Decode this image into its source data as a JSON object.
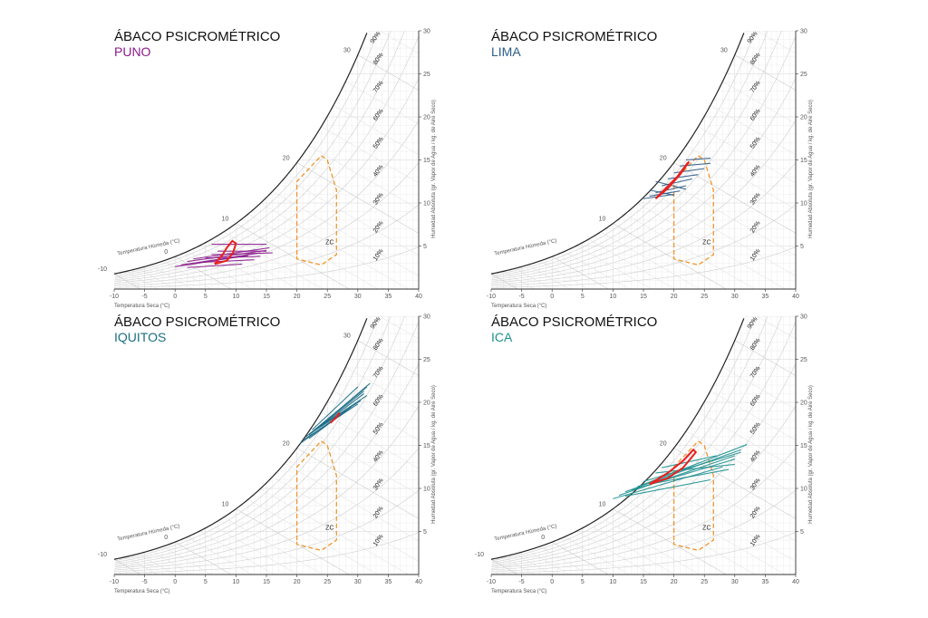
{
  "chart_data": [
    {
      "type": "psychrometric",
      "title": "ÁBACO PSICROMÉTRICO",
      "subtitle": "PUNO",
      "subtitle_color": "#8b1a8b",
      "series_color": "#8b1a8b",
      "xlabel": "Temperatura Seca (°C)",
      "ylabel": "Humedad Absoluta (gr. Vapor de Agua / kg. de Aire Seco)",
      "wetbulb_label": "Temperatura Húmeda (°C)",
      "zone_label": "ZC",
      "xlim": [
        -10,
        40
      ],
      "ylim": [
        0,
        30
      ],
      "x_ticks": [
        "-10",
        "-5",
        "0",
        "5",
        "10",
        "15",
        "20",
        "25",
        "30",
        "35",
        "40"
      ],
      "y_ticks": [
        "5",
        "10",
        "15",
        "20",
        "25",
        "30"
      ],
      "wetbulb_ticks": [
        "-10",
        "0",
        "10",
        "20",
        "30"
      ],
      "rh_labels": [
        "10%",
        "20%",
        "30%",
        "40%",
        "50%",
        "60%",
        "70%",
        "80%",
        "90%"
      ],
      "comfort_zone": [
        [
          20,
          4
        ],
        [
          20,
          12.5
        ],
        [
          24,
          15.5
        ],
        [
          25,
          15
        ],
        [
          26.5,
          11.5
        ],
        [
          26.5,
          4
        ],
        [
          24,
          2.8
        ],
        [
          20,
          3.5
        ]
      ],
      "daily_lines": [
        [
          [
            1,
            2.8
          ],
          [
            14,
            4.2
          ]
        ],
        [
          [
            2,
            3.2
          ],
          [
            15,
            4.5
          ]
        ],
        [
          [
            3,
            3.5
          ],
          [
            15.5,
            4.8
          ]
        ],
        [
          [
            0,
            2.6
          ],
          [
            12,
            3.9
          ]
        ],
        [
          [
            5,
            3.6
          ],
          [
            14,
            3.8
          ]
        ],
        [
          [
            7,
            4.4
          ],
          [
            15,
            4.4
          ]
        ],
        [
          [
            4,
            3.1
          ],
          [
            13,
            3.4
          ]
        ],
        [
          [
            2,
            2.5
          ],
          [
            11,
            2.9
          ]
        ],
        [
          [
            6,
            5.2
          ],
          [
            15,
            5.2
          ]
        ],
        [
          [
            6,
            4.0
          ],
          [
            16,
            4.2
          ]
        ]
      ],
      "monthly_path": [
        [
          6.5,
          2.9
        ],
        [
          8.5,
          3.3
        ],
        [
          9.5,
          4.2
        ],
        [
          10,
          5.3
        ],
        [
          9.4,
          5.6
        ],
        [
          8.5,
          4.8
        ],
        [
          7.8,
          4.0
        ],
        [
          6.5,
          2.9
        ]
      ]
    },
    {
      "type": "psychrometric",
      "title": "ÁBACO PSICROMÉTRICO",
      "subtitle": "LIMA",
      "subtitle_color": "#2e5d8a",
      "series_color": "#2e5d8a",
      "xlabel": "Temperatura Seca (°C)",
      "ylabel": "Humedad Absoluta (gr. Vapor de Agua / kg. de Aire Seco)",
      "wetbulb_label": "Temperatura Húmeda (°C)",
      "zone_label": "ZC",
      "xlim": [
        -10,
        40
      ],
      "ylim": [
        0,
        30
      ],
      "x_ticks": [
        "-10",
        "-5",
        "0",
        "5",
        "10",
        "15",
        "20",
        "25",
        "30",
        "35",
        "40"
      ],
      "y_ticks": [
        "5",
        "10",
        "15",
        "20",
        "25",
        "30"
      ],
      "wetbulb_ticks": [
        "10",
        "20",
        "30"
      ],
      "rh_labels": [
        "10%",
        "20%",
        "30%",
        "40%",
        "50%",
        "60%",
        "70%",
        "80%",
        "90%"
      ],
      "comfort_zone": [
        [
          20,
          4
        ],
        [
          20,
          12.5
        ],
        [
          24,
          15.5
        ],
        [
          25,
          15
        ],
        [
          26.5,
          11.5
        ],
        [
          26.5,
          4
        ],
        [
          24,
          2.8
        ],
        [
          20,
          3.5
        ]
      ],
      "daily_lines": [
        [
          [
            15,
            10.5
          ],
          [
            20,
            11
          ]
        ],
        [
          [
            16,
            10.8
          ],
          [
            21,
            11.4
          ]
        ],
        [
          [
            17,
            11.2
          ],
          [
            22,
            12
          ]
        ],
        [
          [
            18,
            12
          ],
          [
            23,
            12.8
          ]
        ],
        [
          [
            19,
            12.8
          ],
          [
            24,
            13.3
          ]
        ],
        [
          [
            20,
            13.5
          ],
          [
            25,
            14
          ]
        ],
        [
          [
            21,
            14.3
          ],
          [
            26,
            14.6
          ]
        ],
        [
          [
            22,
            15
          ],
          [
            26,
            15.2
          ]
        ],
        [
          [
            17,
            12.5
          ],
          [
            22,
            11.6
          ]
        ],
        [
          [
            16,
            11.5
          ],
          [
            20,
            10.9
          ]
        ]
      ],
      "monthly_path": [
        [
          17,
          10.5
        ],
        [
          19,
          11.7
        ],
        [
          21,
          13.3
        ],
        [
          22.5,
          14.8
        ],
        [
          22.2,
          14.6
        ],
        [
          20.5,
          13
        ],
        [
          18.5,
          11.6
        ],
        [
          17,
          10.5
        ]
      ]
    },
    {
      "type": "psychrometric",
      "title": "ÁBACO PSICROMÉTRICO",
      "subtitle": "IQUITOS",
      "subtitle_color": "#1a6d86",
      "series_color": "#1a6d86",
      "xlabel": "Temperatura Seca (°C)",
      "ylabel": "Humedad Absoluta (gr. Vapor de Agua / kg. de Aire Seco)",
      "wetbulb_label": "Temperatura Húmeda (°C)",
      "zone_label": "ZC",
      "xlim": [
        -10,
        40
      ],
      "ylim": [
        0,
        30
      ],
      "x_ticks": [
        "-10",
        "-5",
        "0",
        "5",
        "10",
        "15",
        "20",
        "25",
        "30",
        "35",
        "40"
      ],
      "y_ticks": [
        "5",
        "10",
        "15",
        "20",
        "25",
        "30"
      ],
      "wetbulb_ticks": [
        "-10",
        "0",
        "10",
        "20",
        "30"
      ],
      "rh_labels": [
        "10%",
        "20%",
        "30%",
        "40%",
        "50%",
        "60%",
        "70%",
        "80%",
        "90%"
      ],
      "comfort_zone": [
        [
          20,
          4
        ],
        [
          20,
          12.5
        ],
        [
          24,
          15.5
        ],
        [
          25,
          15
        ],
        [
          26.5,
          11.5
        ],
        [
          26.5,
          4
        ],
        [
          24,
          2.8
        ],
        [
          20,
          3.5
        ]
      ],
      "daily_lines": [
        [
          [
            22,
            16.2
          ],
          [
            32,
            22.2
          ]
        ],
        [
          [
            21.5,
            16
          ],
          [
            31.5,
            21.8
          ]
        ],
        [
          [
            22.5,
            16.5
          ],
          [
            31,
            21.3
          ]
        ],
        [
          [
            23,
            16.8
          ],
          [
            31.5,
            20.8
          ]
        ],
        [
          [
            22,
            16.3
          ],
          [
            30.5,
            20.2
          ]
        ],
        [
          [
            21,
            15.6
          ],
          [
            30,
            19.8
          ]
        ],
        [
          [
            23.5,
            17
          ],
          [
            31,
            21
          ]
        ],
        [
          [
            22,
            15.8
          ],
          [
            29,
            19.5
          ]
        ],
        [
          [
            20.5,
            15.2
          ],
          [
            28,
            19
          ]
        ],
        [
          [
            22.5,
            16.8
          ],
          [
            30,
            21.8
          ]
        ]
      ],
      "monthly_path": [
        [
          25.5,
          17.6
        ],
        [
          26.8,
          18.5
        ],
        [
          27,
          18.8
        ],
        [
          26.5,
          18.3
        ],
        [
          25.5,
          17.6
        ]
      ]
    },
    {
      "type": "psychrometric",
      "title": "ÁBACO PSICROMÉTRICO",
      "subtitle": "ICA",
      "subtitle_color": "#1f9090",
      "series_color": "#1f9090",
      "xlabel": "Temperatura Seca (°C)",
      "ylabel": "Humedad Absoluta (gr. Vapor de Agua / kg. de Aire Seco)",
      "wetbulb_label": "Temperatura Húmeda (°C)",
      "zone_label": "ZC",
      "xlim": [
        -10,
        40
      ],
      "ylim": [
        0,
        30
      ],
      "x_ticks": [
        "-10",
        "-5",
        "0",
        "5",
        "10",
        "15",
        "20",
        "25",
        "30",
        "35",
        "40"
      ],
      "y_ticks": [
        "5",
        "10",
        "15",
        "20",
        "25",
        "30"
      ],
      "wetbulb_ticks": [
        "-10",
        "0",
        "10",
        "20"
      ],
      "rh_labels": [
        "10%",
        "20%",
        "30%",
        "40%",
        "50%",
        "60%",
        "70%",
        "80%",
        "90%"
      ],
      "comfort_zone": [
        [
          20,
          4
        ],
        [
          20,
          12.5
        ],
        [
          24,
          15.5
        ],
        [
          25,
          15
        ],
        [
          26.5,
          11.5
        ],
        [
          26.5,
          4
        ],
        [
          24,
          2.8
        ],
        [
          20,
          3.5
        ]
      ],
      "daily_lines": [
        [
          [
            11,
            9.2
          ],
          [
            30,
            13.8
          ]
        ],
        [
          [
            12,
            9.6
          ],
          [
            31,
            14.5
          ]
        ],
        [
          [
            14,
            10.2
          ],
          [
            32,
            15.1
          ]
        ],
        [
          [
            10,
            8.8
          ],
          [
            28,
            12.5
          ]
        ],
        [
          [
            13,
            9.8
          ],
          [
            30,
            13.4
          ]
        ],
        [
          [
            15,
            10.8
          ],
          [
            31,
            14.2
          ]
        ],
        [
          [
            16,
            10.5
          ],
          [
            29,
            12.2
          ]
        ],
        [
          [
            18,
            12.4
          ],
          [
            27,
            13.8
          ]
        ],
        [
          [
            17,
            11.8
          ],
          [
            30,
            12.8
          ]
        ],
        [
          [
            12,
            9.1
          ],
          [
            26,
            11
          ]
        ]
      ],
      "monthly_path": [
        [
          16,
          10.5
        ],
        [
          19,
          11.8
        ],
        [
          21.5,
          13.2
        ],
        [
          23.2,
          14.5
        ],
        [
          23.6,
          14.2
        ],
        [
          21.5,
          12.4
        ],
        [
          19,
          11.2
        ],
        [
          16,
          10.5
        ]
      ]
    }
  ]
}
